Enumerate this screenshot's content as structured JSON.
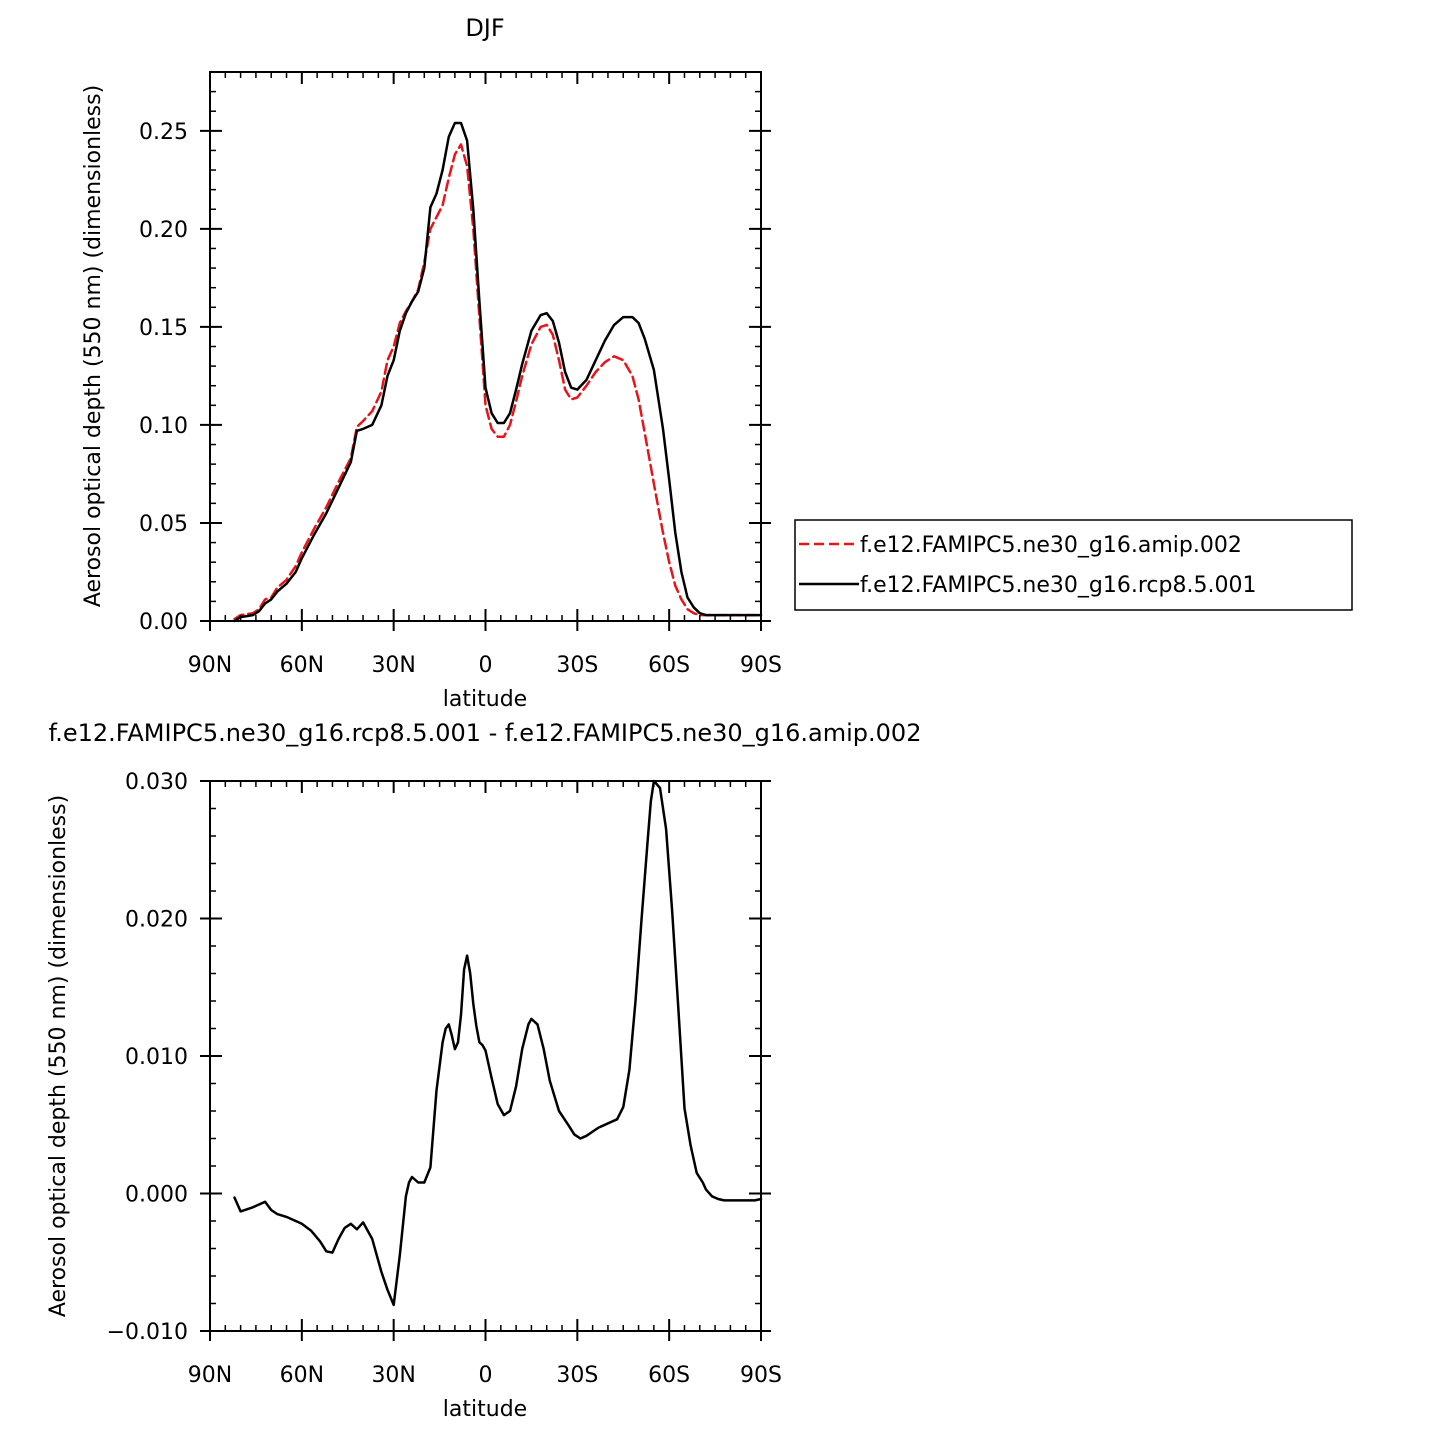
{
  "chart_data": [
    {
      "type": "line",
      "title": "DJF",
      "xlabel": "latitude",
      "ylabel": "Aerosol optical depth (550 nm) (dimensionless)",
      "xlim": [
        90,
        -90
      ],
      "ylim": [
        0,
        0.28
      ],
      "xticks": [
        {
          "v": 90,
          "label": "90N"
        },
        {
          "v": 60,
          "label": "60N"
        },
        {
          "v": 30,
          "label": "30N"
        },
        {
          "v": 0,
          "label": "0"
        },
        {
          "v": -30,
          "label": "30S"
        },
        {
          "v": -60,
          "label": "60S"
        },
        {
          "v": -90,
          "label": "90S"
        }
      ],
      "yticks": [
        {
          "v": 0,
          "label": "0.00"
        },
        {
          "v": 0.05,
          "label": "0.05"
        },
        {
          "v": 0.1,
          "label": "0.10"
        },
        {
          "v": 0.15,
          "label": "0.15"
        },
        {
          "v": 0.2,
          "label": "0.20"
        },
        {
          "v": 0.25,
          "label": "0.25"
        }
      ],
      "legend_position": "right",
      "series": [
        {
          "name": "f.e12.FAMIPC5.ne30_g16.amip.002",
          "color": "#e8141c",
          "dash": true,
          "x": [
            82,
            80,
            76,
            74,
            72,
            70,
            68,
            65,
            62,
            60,
            56,
            52,
            48,
            44,
            42,
            40,
            37,
            34,
            32,
            30,
            28,
            26,
            24,
            22,
            20,
            18,
            16,
            14,
            12,
            10,
            8,
            6,
            4,
            2,
            0,
            -2,
            -4,
            -6,
            -8,
            -10,
            -12,
            -15,
            -18,
            -20,
            -22,
            -24,
            -26,
            -28,
            -30,
            -33,
            -36,
            -39,
            -42,
            -45,
            -48,
            -50,
            -52,
            -55,
            -58,
            -60,
            -62,
            -64,
            -66,
            -68,
            -70,
            -72,
            -74,
            -78,
            -82,
            -86,
            -90
          ],
          "y": [
            0.001,
            0.003,
            0.004,
            0.006,
            0.011,
            0.012,
            0.017,
            0.021,
            0.028,
            0.035,
            0.047,
            0.058,
            0.071,
            0.083,
            0.099,
            0.102,
            0.107,
            0.117,
            0.133,
            0.14,
            0.152,
            0.158,
            0.163,
            0.169,
            0.183,
            0.2,
            0.206,
            0.212,
            0.226,
            0.238,
            0.243,
            0.232,
            0.2,
            0.155,
            0.11,
            0.098,
            0.094,
            0.094,
            0.1,
            0.112,
            0.125,
            0.141,
            0.15,
            0.151,
            0.146,
            0.133,
            0.118,
            0.113,
            0.114,
            0.12,
            0.127,
            0.132,
            0.135,
            0.133,
            0.125,
            0.113,
            0.096,
            0.07,
            0.045,
            0.03,
            0.018,
            0.011,
            0.006,
            0.004,
            0.003,
            0.003,
            0.003,
            0.003,
            0.003,
            0.003,
            0.003
          ]
        },
        {
          "name": "f.e12.FAMIPC5.ne30_g16.rcp8.5.001",
          "color": "#000000",
          "dash": false,
          "x": [
            82,
            80,
            76,
            74,
            72,
            70,
            68,
            65,
            62,
            60,
            56,
            52,
            48,
            44,
            42,
            40,
            37,
            34,
            32,
            30,
            28,
            26,
            24,
            22,
            20,
            18,
            16,
            14,
            12,
            10,
            8,
            6,
            4,
            2,
            0,
            -2,
            -4,
            -6,
            -8,
            -10,
            -12,
            -15,
            -18,
            -20,
            -22,
            -24,
            -26,
            -28,
            -30,
            -33,
            -36,
            -39,
            -42,
            -45,
            -48,
            -50,
            -52,
            -55,
            -58,
            -60,
            -62,
            -64,
            -66,
            -68,
            -70,
            -72,
            -74,
            -78,
            -82,
            -86,
            -90
          ],
          "y": [
            0.0,
            0.002,
            0.003,
            0.005,
            0.009,
            0.011,
            0.015,
            0.019,
            0.025,
            0.032,
            0.044,
            0.055,
            0.068,
            0.081,
            0.097,
            0.098,
            0.1,
            0.11,
            0.125,
            0.133,
            0.148,
            0.157,
            0.163,
            0.168,
            0.18,
            0.211,
            0.218,
            0.23,
            0.247,
            0.254,
            0.254,
            0.245,
            0.21,
            0.163,
            0.119,
            0.106,
            0.101,
            0.101,
            0.106,
            0.118,
            0.131,
            0.148,
            0.156,
            0.157,
            0.153,
            0.142,
            0.127,
            0.119,
            0.118,
            0.123,
            0.133,
            0.143,
            0.151,
            0.155,
            0.155,
            0.152,
            0.144,
            0.128,
            0.098,
            0.072,
            0.045,
            0.025,
            0.012,
            0.007,
            0.004,
            0.003,
            0.003,
            0.003,
            0.003,
            0.003,
            0.003
          ]
        }
      ]
    },
    {
      "type": "line",
      "title": "f.e12.FAMIPC5.ne30_g16.rcp8.5.001 - f.e12.FAMIPC5.ne30_g16.amip.002",
      "xlabel": "latitude",
      "ylabel": "Aerosol optical depth (550 nm) (dimensionless)",
      "xlim": [
        90,
        -90
      ],
      "ylim": [
        -0.01,
        0.03
      ],
      "xticks": [
        {
          "v": 90,
          "label": "90N"
        },
        {
          "v": 60,
          "label": "60N"
        },
        {
          "v": 30,
          "label": "30N"
        },
        {
          "v": 0,
          "label": "0"
        },
        {
          "v": -30,
          "label": "30S"
        },
        {
          "v": -60,
          "label": "60S"
        },
        {
          "v": -90,
          "label": "90S"
        }
      ],
      "yticks": [
        {
          "v": -0.01,
          "label": "−0.010"
        },
        {
          "v": 0.0,
          "label": "0.000"
        },
        {
          "v": 0.01,
          "label": "0.010"
        },
        {
          "v": 0.02,
          "label": "0.020"
        },
        {
          "v": 0.03,
          "label": "0.030"
        }
      ],
      "series": [
        {
          "name": "",
          "color": "#000000",
          "dash": false,
          "x": [
            82,
            80,
            76,
            74,
            72,
            70,
            68,
            65,
            62,
            60,
            57,
            54,
            52,
            50,
            48,
            46,
            44,
            42,
            40,
            37,
            34,
            32,
            30,
            28,
            26,
            25,
            24,
            22,
            20,
            18,
            16,
            14,
            13,
            12,
            11,
            10,
            9,
            8,
            7,
            6,
            5,
            4,
            3,
            2,
            1,
            0,
            -2,
            -4,
            -6,
            -8,
            -10,
            -12,
            -14,
            -15,
            -17,
            -19,
            -21,
            -24,
            -27,
            -29,
            -31,
            -33,
            -35,
            -37,
            -39,
            -41,
            -43,
            -45,
            -47,
            -49,
            -51,
            -53,
            -54,
            -55,
            -57,
            -59,
            -61,
            -63,
            -65,
            -67,
            -69,
            -71,
            -72,
            -74,
            -76,
            -78,
            -80,
            -84,
            -88,
            -90
          ],
          "y": [
            -0.0003,
            -0.0013,
            -0.001,
            -0.0008,
            -0.0006,
            -0.0012,
            -0.0015,
            -0.0017,
            -0.002,
            -0.0022,
            -0.0027,
            -0.0035,
            -0.0042,
            -0.0043,
            -0.0033,
            -0.0025,
            -0.0022,
            -0.0026,
            -0.0021,
            -0.0033,
            -0.0057,
            -0.007,
            -0.0081,
            -0.0045,
            -0.0002,
            0.0008,
            0.0012,
            0.0008,
            0.0008,
            0.0019,
            0.0075,
            0.011,
            0.012,
            0.0123,
            0.0115,
            0.0105,
            0.011,
            0.013,
            0.0163,
            0.0173,
            0.016,
            0.0138,
            0.0122,
            0.011,
            0.0108,
            0.0104,
            0.0084,
            0.0065,
            0.0057,
            0.006,
            0.0078,
            0.0105,
            0.0123,
            0.0127,
            0.0123,
            0.0105,
            0.0082,
            0.006,
            0.005,
            0.0043,
            0.004,
            0.0042,
            0.0045,
            0.0048,
            0.005,
            0.0052,
            0.0054,
            0.0063,
            0.009,
            0.014,
            0.02,
            0.0257,
            0.0285,
            0.03,
            0.0295,
            0.0265,
            0.0205,
            0.0135,
            0.0062,
            0.0035,
            0.0015,
            0.0008,
            0.0003,
            -0.0002,
            -0.0004,
            -0.0005,
            -0.0005,
            -0.0005,
            -0.0005,
            -0.0004
          ]
        }
      ]
    }
  ]
}
